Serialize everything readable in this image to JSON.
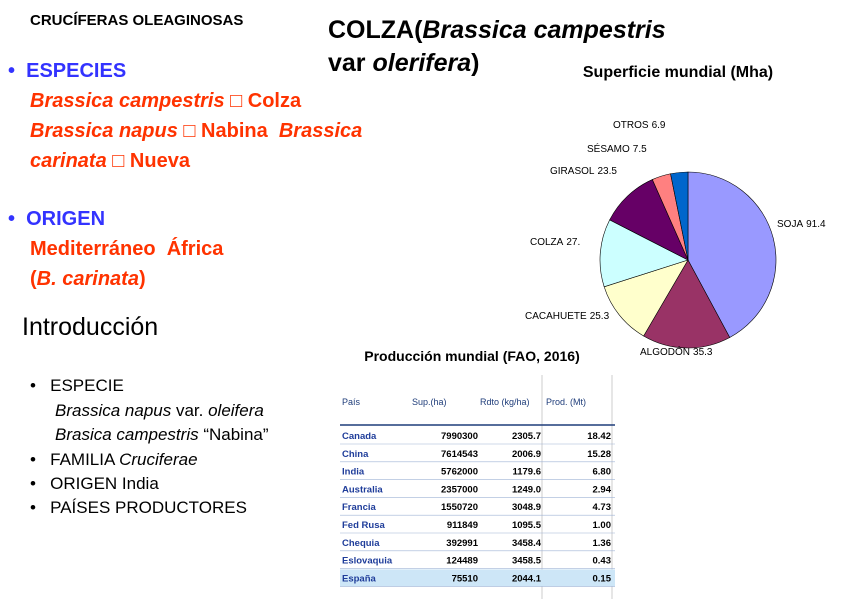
{
  "header": {
    "left_title": "CRUCÍFERAS OLEAGINOSAS",
    "title_parts": [
      "COLZA(",
      "Brassica campestris",
      "var ",
      "olerifera",
      ")"
    ]
  },
  "species": {
    "heading": "ESPECIES",
    "line1": [
      "Brassica campestris",
      " □ Colza"
    ],
    "line2": [
      "Brassica napus",
      " □ Nabina  ",
      "Brassica"
    ],
    "line3": [
      "carinata",
      " □ Nueva"
    ]
  },
  "origin": {
    "heading": "ORIGEN",
    "line1": "Mediterráneo  África",
    "line2": [
      "(",
      "B. carinata",
      ")"
    ]
  },
  "intro": {
    "title": "Introducción",
    "especie": "ESPECIE",
    "sub1": [
      "Brassica napus",
      " var. ",
      "oleifera"
    ],
    "sub2": [
      "Brasica campestris",
      " “Nabina”"
    ],
    "familia": [
      "FAMILIA ",
      "Cruciferae"
    ],
    "origen": "ORIGEN India",
    "paises": "PAÍSES PRODUCTORES"
  },
  "chart_data": {
    "type": "pie",
    "title": "Superficie mundial (Mha)",
    "categories": [
      "SOJA",
      "ALGODÓN",
      "CACAHUETE",
      "COLZA",
      "GIRASOL",
      "SÉSAMO",
      "OTROS"
    ],
    "values": [
      91.4,
      35.3,
      25.3,
      27,
      23.5,
      7.5,
      6.9
    ],
    "value_labels": [
      "91.4",
      "35.3",
      "25.3",
      "27.",
      "23.5",
      "7.5",
      "6.9"
    ],
    "colors": [
      "#9999ff",
      "#993366",
      "#ffffcc",
      "#ccffff",
      "#660066",
      "#ff8080",
      "#0066cc"
    ]
  },
  "table": {
    "title": "Producción mundial  (FAO, 2016)",
    "header": [
      "País",
      "Sup.(ha)",
      "Rdto (kg/ha)",
      "Prod. (Mt)"
    ],
    "rows": [
      [
        "Canada",
        "7990300",
        "2305.7",
        "18.42"
      ],
      [
        "China",
        "7614543",
        "2006.9",
        "15.28"
      ],
      [
        "India",
        "5762000",
        "1179.6",
        "6.80"
      ],
      [
        "Australia",
        "2357000",
        "1249.0",
        "2.94"
      ],
      [
        "Francia",
        "1550720",
        "3048.9",
        "4.73"
      ],
      [
        "Fed Rusa",
        "911849",
        "1095.5",
        "1.00"
      ],
      [
        "Chequia",
        "392991",
        "3458.4",
        "1.36"
      ],
      [
        "Eslovaquia",
        "124489",
        "3458.5",
        "0.43"
      ],
      [
        "España",
        "75510",
        "2044.1",
        "0.15"
      ]
    ]
  }
}
